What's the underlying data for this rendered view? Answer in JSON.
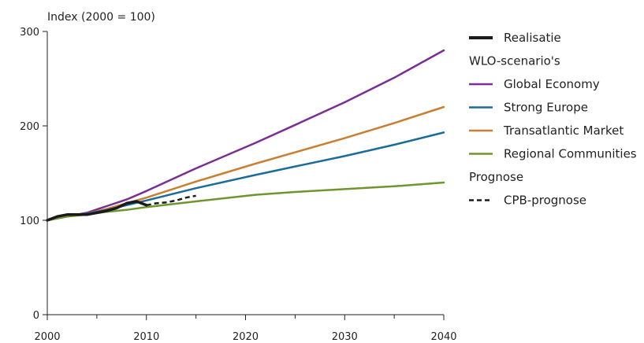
{
  "chart_data": {
    "type": "line",
    "ylabel": "Index (2000 = 100)",
    "xlim": [
      2000,
      2040
    ],
    "ylim": [
      0,
      300
    ],
    "x_ticks": [
      2000,
      2010,
      2020,
      2030,
      2040
    ],
    "y_ticks": [
      0,
      100,
      200,
      300
    ],
    "grid": false,
    "legend_placement": "right",
    "legend": [
      {
        "kind": "series",
        "label": "Realisatie",
        "series": "realisatie"
      },
      {
        "kind": "heading",
        "label": "WLO-scenario's"
      },
      {
        "kind": "series",
        "label": "Global Economy",
        "series": "global_economy"
      },
      {
        "kind": "series",
        "label": "Strong Europe",
        "series": "strong_europe"
      },
      {
        "kind": "series",
        "label": "Transatlantic Market",
        "series": "transatlantic_market"
      },
      {
        "kind": "series",
        "label": "Regional Communities",
        "series": "regional_communities"
      },
      {
        "kind": "heading",
        "label": "Prognose"
      },
      {
        "kind": "series",
        "label": "CPB-prognose",
        "series": "cpb_prognose"
      }
    ],
    "series": [
      {
        "id": "global_economy",
        "name": "Global Economy",
        "color": "#7B2E91",
        "dash": "solid",
        "points": [
          [
            2000,
            100
          ],
          [
            2002,
            104
          ],
          [
            2004,
            108
          ],
          [
            2006,
            115
          ],
          [
            2008,
            122
          ],
          [
            2010,
            131
          ],
          [
            2015,
            155
          ],
          [
            2021,
            182
          ],
          [
            2025,
            201
          ],
          [
            2030,
            225
          ],
          [
            2035,
            251
          ],
          [
            2040,
            280
          ]
        ]
      },
      {
        "id": "transatlantic_market",
        "name": "Transatlantic Market",
        "color": "#C97F2F",
        "dash": "solid",
        "points": [
          [
            2000,
            100
          ],
          [
            2002,
            104
          ],
          [
            2004,
            107
          ],
          [
            2006,
            112
          ],
          [
            2008,
            118
          ],
          [
            2010,
            124
          ],
          [
            2015,
            141
          ],
          [
            2021,
            160
          ],
          [
            2025,
            172
          ],
          [
            2030,
            187
          ],
          [
            2035,
            203
          ],
          [
            2040,
            220
          ]
        ]
      },
      {
        "id": "strong_europe",
        "name": "Strong Europe",
        "color": "#1B6C99",
        "dash": "solid",
        "points": [
          [
            2000,
            100
          ],
          [
            2002,
            104
          ],
          [
            2004,
            107
          ],
          [
            2006,
            111
          ],
          [
            2008,
            116
          ],
          [
            2010,
            121
          ],
          [
            2015,
            134
          ],
          [
            2021,
            148
          ],
          [
            2025,
            157
          ],
          [
            2030,
            168
          ],
          [
            2035,
            180
          ],
          [
            2040,
            193
          ]
        ]
      },
      {
        "id": "regional_communities",
        "name": "Regional Communities",
        "color": "#6E962F",
        "dash": "solid",
        "points": [
          [
            2000,
            100
          ],
          [
            2002,
            104
          ],
          [
            2004,
            106
          ],
          [
            2006,
            109
          ],
          [
            2008,
            111
          ],
          [
            2010,
            114
          ],
          [
            2015,
            120
          ],
          [
            2021,
            127
          ],
          [
            2025,
            130
          ],
          [
            2030,
            133
          ],
          [
            2035,
            136
          ],
          [
            2040,
            140
          ]
        ]
      },
      {
        "id": "realisatie",
        "name": "Realisatie",
        "color": "#1a1a1a",
        "dash": "solid",
        "points": [
          [
            2000,
            100
          ],
          [
            2001,
            104
          ],
          [
            2002,
            106
          ],
          [
            2003,
            106
          ],
          [
            2004,
            106
          ],
          [
            2005,
            108
          ],
          [
            2006,
            110
          ],
          [
            2007,
            113
          ],
          [
            2008,
            118
          ],
          [
            2009,
            120
          ],
          [
            2010,
            116
          ]
        ]
      },
      {
        "id": "cpb_prognose",
        "name": "CPB-prognose",
        "color": "#1a1a1a",
        "dash": "dashed",
        "points": [
          [
            2010,
            116
          ],
          [
            2011,
            118
          ],
          [
            2012,
            119
          ],
          [
            2013,
            121
          ],
          [
            2014,
            124
          ],
          [
            2015,
            126
          ]
        ]
      }
    ]
  }
}
